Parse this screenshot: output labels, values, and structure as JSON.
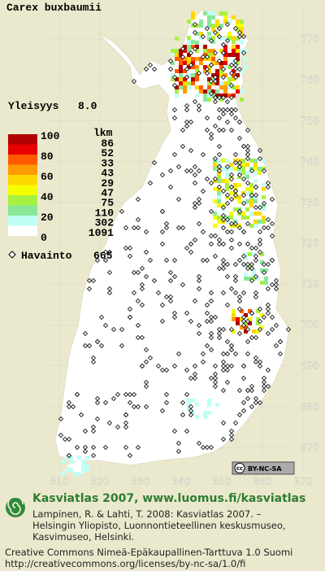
{
  "map": {
    "title": "Carex buxbaumii",
    "frequency_label": "Yleisyys",
    "frequency": {
      "value": 8,
      "label": "8.0"
    },
    "legend": {
      "scale_ticks": [
        100,
        80,
        60,
        40,
        20,
        0
      ],
      "count_header": "lkm",
      "bins": [
        {
          "color": "#b00000",
          "count": 86
        },
        {
          "color": "#e80000",
          "count": 52
        },
        {
          "color": "#ff5a00",
          "count": 33
        },
        {
          "color": "#ff9a00",
          "count": 43
        },
        {
          "color": "#ffd800",
          "count": 29
        },
        {
          "color": "#f4ff00",
          "count": 47
        },
        {
          "color": "#a8f040",
          "count": 75
        },
        {
          "color": "#88e898",
          "count": 110
        },
        {
          "color": "#c0fff4",
          "count": 302
        },
        {
          "color": "#ffffff",
          "count": 1091
        }
      ]
    },
    "observations": {
      "label": "Havainto",
      "count": 665
    },
    "grid": {
      "x_ticks": [
        310,
        320,
        330,
        340,
        350,
        360,
        370
      ],
      "y_ticks": [
        770,
        760,
        750,
        740,
        730,
        720,
        710,
        700,
        690,
        680,
        670
      ]
    },
    "badge": {
      "icon": "cc",
      "text": "BY-NC-SA"
    }
  },
  "footer": {
    "title": "Kasviatlas 2007, www.luomus.fi/kasviatlas",
    "citation": [
      "Lampinen, R. & Lahti, T. 2008: Kasviatlas 2007. –",
      "Helsingin Yliopisto, Luonnontieteellinen keskusmuseo,",
      "Kasvimuseo, Helsinki."
    ],
    "license": [
      "Creative Commons Nimeä-Epäkaupallinen-Tarttuva 1.0 Suomi",
      "http://creativecommons.org/licenses/by-nc-sa/1.0/fi"
    ]
  }
}
